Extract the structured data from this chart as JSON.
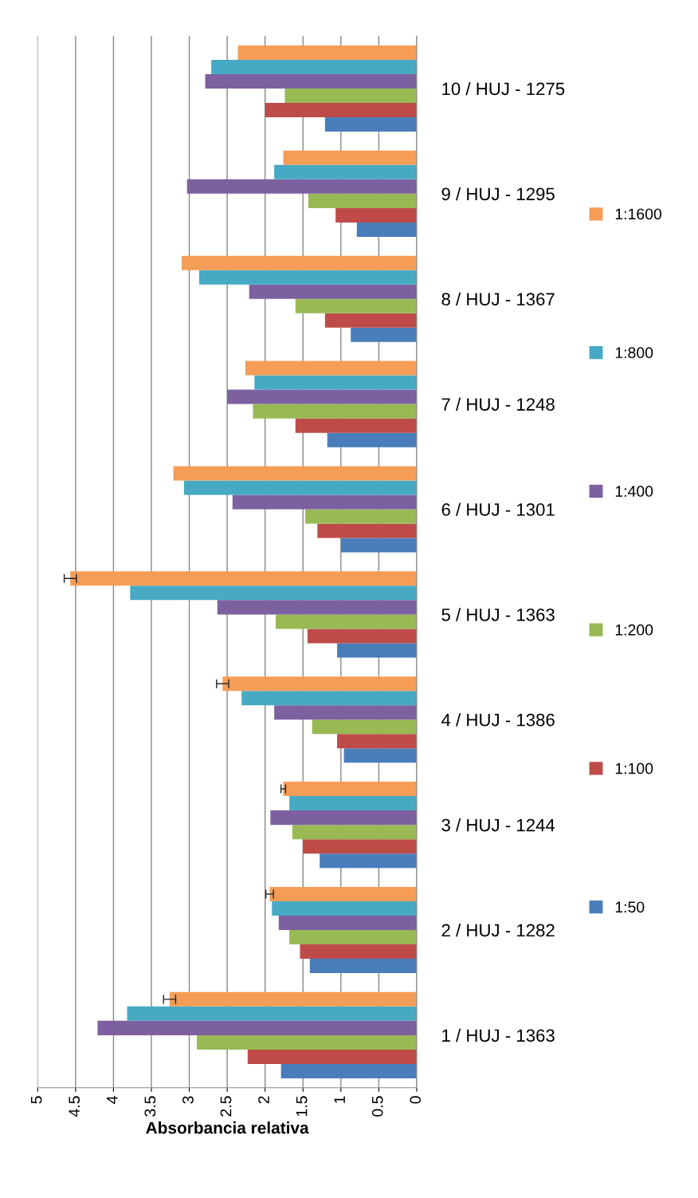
{
  "chart_data": {
    "type": "bar",
    "orientation": "horizontal",
    "xlabel": "Absorbancia relativa",
    "categories": [
      "10 / HUJ - 1275",
      "9 / HUJ - 1295",
      "8 / HUJ - 1367",
      "7 / HUJ - 1248",
      "6 / HUJ - 1301",
      "5 / HUJ - 1363",
      "4 / HUJ - 1386",
      "3 / HUJ - 1244",
      "2 / HUJ - 1282",
      "1 / HUJ - 1363"
    ],
    "series": [
      {
        "name": "1:50",
        "color": "#4a7ebb",
        "values": [
          1.21,
          0.79,
          0.87,
          1.18,
          1.0,
          1.05,
          0.96,
          1.28,
          1.41,
          1.79
        ]
      },
      {
        "name": "1:100",
        "color": "#be4b48",
        "values": [
          2.0,
          1.07,
          1.21,
          1.6,
          1.31,
          1.44,
          1.05,
          1.5,
          1.54,
          2.23
        ]
      },
      {
        "name": "1:200",
        "color": "#98b954",
        "values": [
          1.74,
          1.43,
          1.6,
          2.16,
          1.47,
          1.86,
          1.38,
          1.64,
          1.68,
          2.9
        ]
      },
      {
        "name": "1:400",
        "color": "#7d60a0",
        "values": [
          2.79,
          3.03,
          2.21,
          2.5,
          2.43,
          2.63,
          1.88,
          1.93,
          1.82,
          4.21
        ]
      },
      {
        "name": "1:800",
        "color": "#46aac5",
        "values": [
          2.71,
          1.88,
          2.87,
          2.14,
          3.07,
          3.78,
          2.31,
          1.68,
          1.91,
          3.82
        ]
      },
      {
        "name": "1:1600",
        "color": "#f59d56",
        "values": [
          2.36,
          1.76,
          3.1,
          2.26,
          3.21,
          4.57,
          2.56,
          1.76,
          1.94,
          3.26
        ],
        "errors": [
          null,
          null,
          null,
          null,
          null,
          0.08,
          0.08,
          0.03,
          0.05,
          0.08
        ]
      }
    ],
    "xlim": [
      5,
      0
    ],
    "xticks": [
      0,
      0.5,
      1,
      1.5,
      2,
      2.5,
      3,
      3.5,
      4,
      4.5,
      5
    ],
    "grid": "x",
    "legend": "right"
  }
}
